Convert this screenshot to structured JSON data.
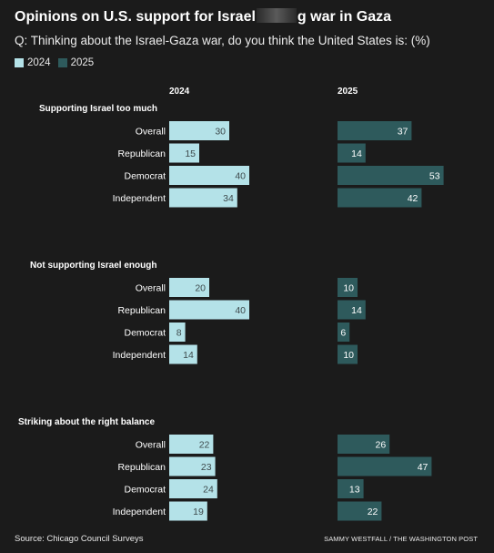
{
  "title_part1": "Opinions on U.S. support for Israel",
  "title_part2": "g war in Gaza",
  "subtitle": "Q: Thinking about the Israel-Gaza war, do you think the United States is: (%)",
  "source": "Source: Chicago Council Surveys",
  "credit": "SAMMY WESTFALL / THE WASHINGTON POST",
  "colors": {
    "2024": "#b4e2e8",
    "2025": "#2e5a5c",
    "background": "#1b1b1b"
  },
  "chart_data": {
    "type": "bar",
    "orientation": "horizontal",
    "legend": [
      "2024",
      "2025"
    ],
    "legend_position": "top-left",
    "columns": [
      "2024",
      "2025"
    ],
    "categories": [
      "Overall",
      "Republican",
      "Democrat",
      "Independent"
    ],
    "groups": [
      {
        "label": "Supporting Israel too much",
        "2024": [
          30,
          15,
          40,
          34
        ],
        "2025": [
          37,
          14,
          53,
          42
        ]
      },
      {
        "label": "Not supporting Israel enough",
        "2024": [
          20,
          40,
          8,
          14
        ],
        "2025": [
          10,
          14,
          6,
          10
        ]
      },
      {
        "label": "Striking about the right balance",
        "2024": [
          22,
          23,
          24,
          19
        ],
        "2025": [
          26,
          47,
          13,
          22
        ]
      }
    ]
  }
}
